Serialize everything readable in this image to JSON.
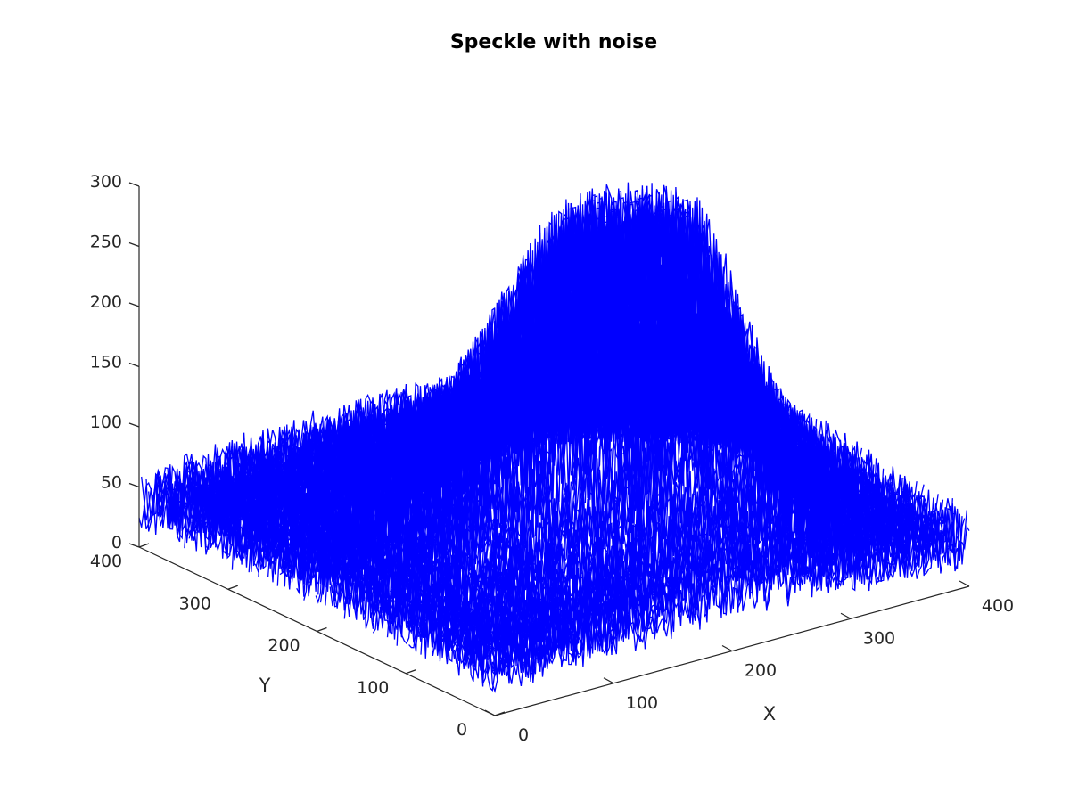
{
  "chart_data": {
    "type": "line",
    "title": "Speckle with noise",
    "xlabel": "X",
    "ylabel": "Y",
    "zlabel": "",
    "xlim": [
      0,
      400
    ],
    "ylim": [
      0,
      400
    ],
    "zlim": [
      0,
      300
    ],
    "x_ticks": [
      "0",
      "100",
      "200",
      "300",
      "400"
    ],
    "y_ticks": [
      "0",
      "100",
      "200",
      "300",
      "400"
    ],
    "z_ticks": [
      "0",
      "50",
      "100",
      "150",
      "200",
      "250",
      "300"
    ],
    "grid": false,
    "series": [
      {
        "line_color": "#0000ff",
        "surface": "noisy intensity profile over a 400x400 grid; background about 20-70; central raised speckle region reaching about 250-300",
        "max_value": 300
      }
    ]
  }
}
